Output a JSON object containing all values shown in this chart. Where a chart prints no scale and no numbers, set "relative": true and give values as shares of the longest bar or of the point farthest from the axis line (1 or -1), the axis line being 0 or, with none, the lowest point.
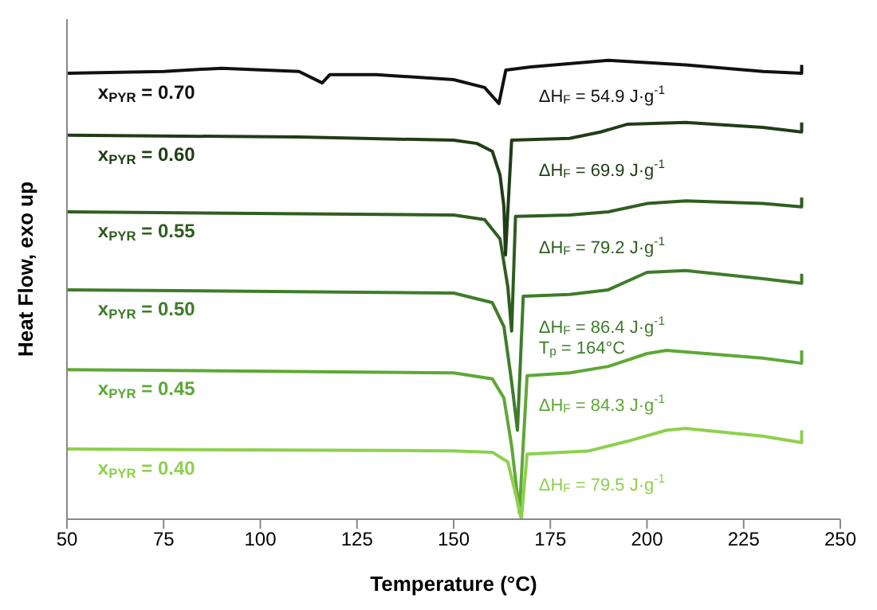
{
  "chart_data": {
    "type": "line",
    "relative": true,
    "xlabel": "Temperature (°C)",
    "ylabel": "Heat Flow, exo up",
    "xlim": [
      50,
      250
    ],
    "xticks": [
      50,
      75,
      100,
      125,
      150,
      175,
      200,
      225,
      250
    ],
    "series": [
      {
        "name": "x$_{PYR}$ = 0.70",
        "color": "#111111",
        "x": [
          50,
          75,
          90,
          110,
          116,
          118,
          130,
          150,
          158,
          161.7,
          163.5,
          170,
          190,
          210,
          230,
          240,
          240
        ],
        "values": [
          0.972,
          0.976,
          0.983,
          0.976,
          0.951,
          0.969,
          0.969,
          0.958,
          0.941,
          0.906,
          0.979,
          0.986,
          1.0,
          0.99,
          0.976,
          0.972,
          0.99
        ]
      },
      {
        "name": "x$_{PYR}$ = 0.60",
        "color": "#1f3d16",
        "x": [
          50,
          110,
          150,
          156,
          160,
          162,
          163,
          163.4,
          165,
          180,
          188,
          195,
          210,
          230,
          240,
          240
        ],
        "values": [
          0.837,
          0.833,
          0.826,
          0.819,
          0.802,
          0.75,
          0.681,
          0.576,
          0.826,
          0.83,
          0.844,
          0.861,
          0.865,
          0.854,
          0.844,
          0.865
        ]
      },
      {
        "name": "x$_{PYR}$ = 0.55",
        "color": "#2f5e20",
        "x": [
          50,
          150,
          158,
          162,
          164,
          165,
          166,
          180,
          190,
          200,
          210,
          230,
          240,
          240
        ],
        "values": [
          0.67,
          0.663,
          0.653,
          0.611,
          0.507,
          0.41,
          0.66,
          0.663,
          0.67,
          0.688,
          0.694,
          0.688,
          0.681,
          0.701
        ]
      },
      {
        "name": "x$_{PYR}$ = 0.50",
        "color": "#3f7c2a",
        "x": [
          50,
          150,
          160,
          163,
          165,
          166.5,
          168,
          180,
          190,
          200,
          210,
          230,
          240,
          240
        ],
        "values": [
          0.5,
          0.493,
          0.472,
          0.42,
          0.299,
          0.194,
          0.486,
          0.49,
          0.5,
          0.538,
          0.542,
          0.524,
          0.514,
          0.535
        ]
      },
      {
        "name": "x$_{PYR}$ = 0.45",
        "color": "#5ea836",
        "x": [
          50,
          150,
          160,
          163,
          165,
          167,
          169,
          180,
          190,
          200,
          205,
          230,
          240,
          240
        ],
        "values": [
          0.326,
          0.319,
          0.306,
          0.264,
          0.16,
          0.014,
          0.313,
          0.319,
          0.333,
          0.361,
          0.368,
          0.351,
          0.34,
          0.368
        ]
      },
      {
        "name": "x$_{PYR}$ = 0.40",
        "color": "#8ed04e",
        "x": [
          50,
          150,
          160,
          164,
          166,
          167.5,
          169,
          185,
          195,
          205,
          210,
          230,
          240,
          240
        ],
        "values": [
          0.153,
          0.149,
          0.146,
          0.125,
          0.056,
          0,
          0.142,
          0.149,
          0.17,
          0.194,
          0.198,
          0.181,
          0.167,
          0.194
        ]
      }
    ],
    "annotations": [
      "ΔH$_{F}$ = 54.9 J·g$^{-1}$",
      "ΔH$_{F}$ = 69.9 J·g$^{-1}$",
      "ΔH$_{F}$ = 79.2 J·g$^{-1}$",
      "ΔH$_{F}$ = 86.4 J·g$^{-1}$\nT$_{p}$ = 164°C",
      "ΔH$_{F}$ = 84.3 J·g$^{-1}$",
      "ΔH$_{F}$ = 79.5 J·g$^{-1}$"
    ]
  }
}
